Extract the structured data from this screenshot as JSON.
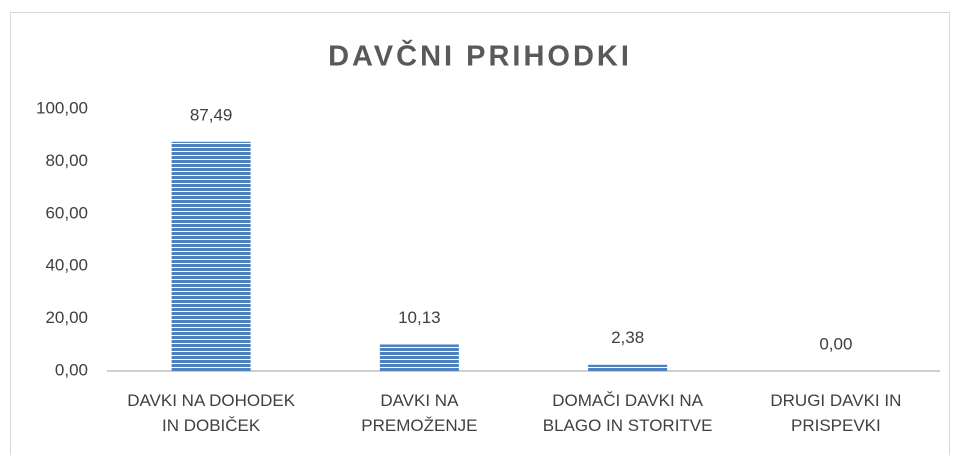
{
  "chart_data": {
    "type": "bar",
    "title": "DAVČNI PRIHODKI",
    "categories": [
      "DAVKI NA DOHODEK\nIN DOBIČEK",
      "DAVKI NA\nPREMOŽENJE",
      "DOMAČI DAVKI NA\nBLAGO IN STORITVE",
      "DRUGI DAVKI IN\nPRISPEVKI"
    ],
    "values": [
      87.49,
      10.13,
      2.38,
      0
    ],
    "value_labels": [
      "87,49",
      "10,13",
      "2,38",
      "0,00"
    ],
    "color": "#4f81bd",
    "ylim": [
      0,
      100
    ],
    "yticks": [
      {
        "value": 0,
        "label": "0,00"
      },
      {
        "value": 20,
        "label": "20,00"
      },
      {
        "value": 40,
        "label": "40,00"
      },
      {
        "value": 60,
        "label": "60,00"
      },
      {
        "value": 80,
        "label": "80,00"
      },
      {
        "value": 100,
        "label": "100,00"
      }
    ],
    "grid": false
  }
}
